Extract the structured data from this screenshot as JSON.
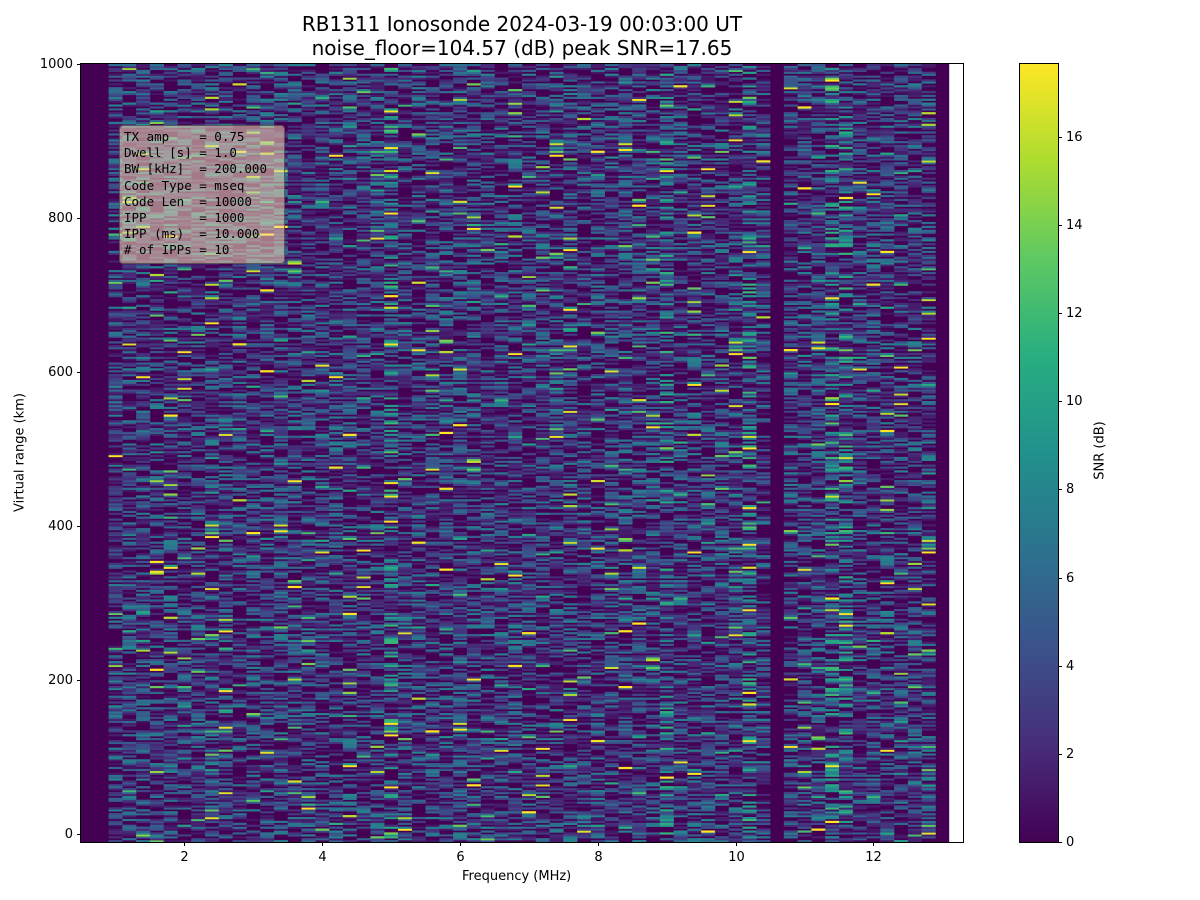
{
  "chart_data": {
    "type": "heatmap",
    "title": "RB1311 Ionosonde 2024-03-19 00:03:00  UT",
    "subtitle": "noise_floor=104.57 (dB) peak SNR=17.65",
    "xlabel": "Frequency (MHz)",
    "ylabel": "Virtual range (km)",
    "xlim": [
      0.5,
      13.3
    ],
    "ylim": [
      -10,
      1000
    ],
    "x_ticks": [
      2,
      4,
      6,
      8,
      10,
      12
    ],
    "y_ticks": [
      0,
      200,
      400,
      600,
      800,
      1000
    ],
    "data_extent": {
      "x": [
        0.5,
        13.1
      ],
      "y": [
        -10,
        1000
      ]
    },
    "colorbar": {
      "label": "SNR (dB)",
      "range": [
        0,
        17.65
      ],
      "ticks": [
        0,
        2,
        4,
        6,
        8,
        10,
        12,
        14,
        16
      ],
      "colormap": "viridis"
    },
    "low_snr_frequency_bands_mhz": [
      [
        0.5,
        0.9
      ],
      [
        9.05,
        9.2
      ],
      [
        10.55,
        10.6
      ],
      [
        12.9,
        13.1
      ]
    ],
    "bright_frequency_columns_mhz": [
      5.0,
      9.0,
      10.2,
      11.5
    ],
    "grid": false
  },
  "info_box": {
    "lines": [
      "TX amp    = 0.75",
      "Dwell [s] = 1.0",
      "BW [kHz]  = 200.000",
      "Code Type = mseq",
      "Code Len  = 10000",
      "IPP       = 1000",
      "IPP (ms)  = 10.000",
      "# of IPPs = 10"
    ]
  },
  "colors": {
    "viridis_min": "#440154",
    "viridis_max": "#fde725"
  }
}
